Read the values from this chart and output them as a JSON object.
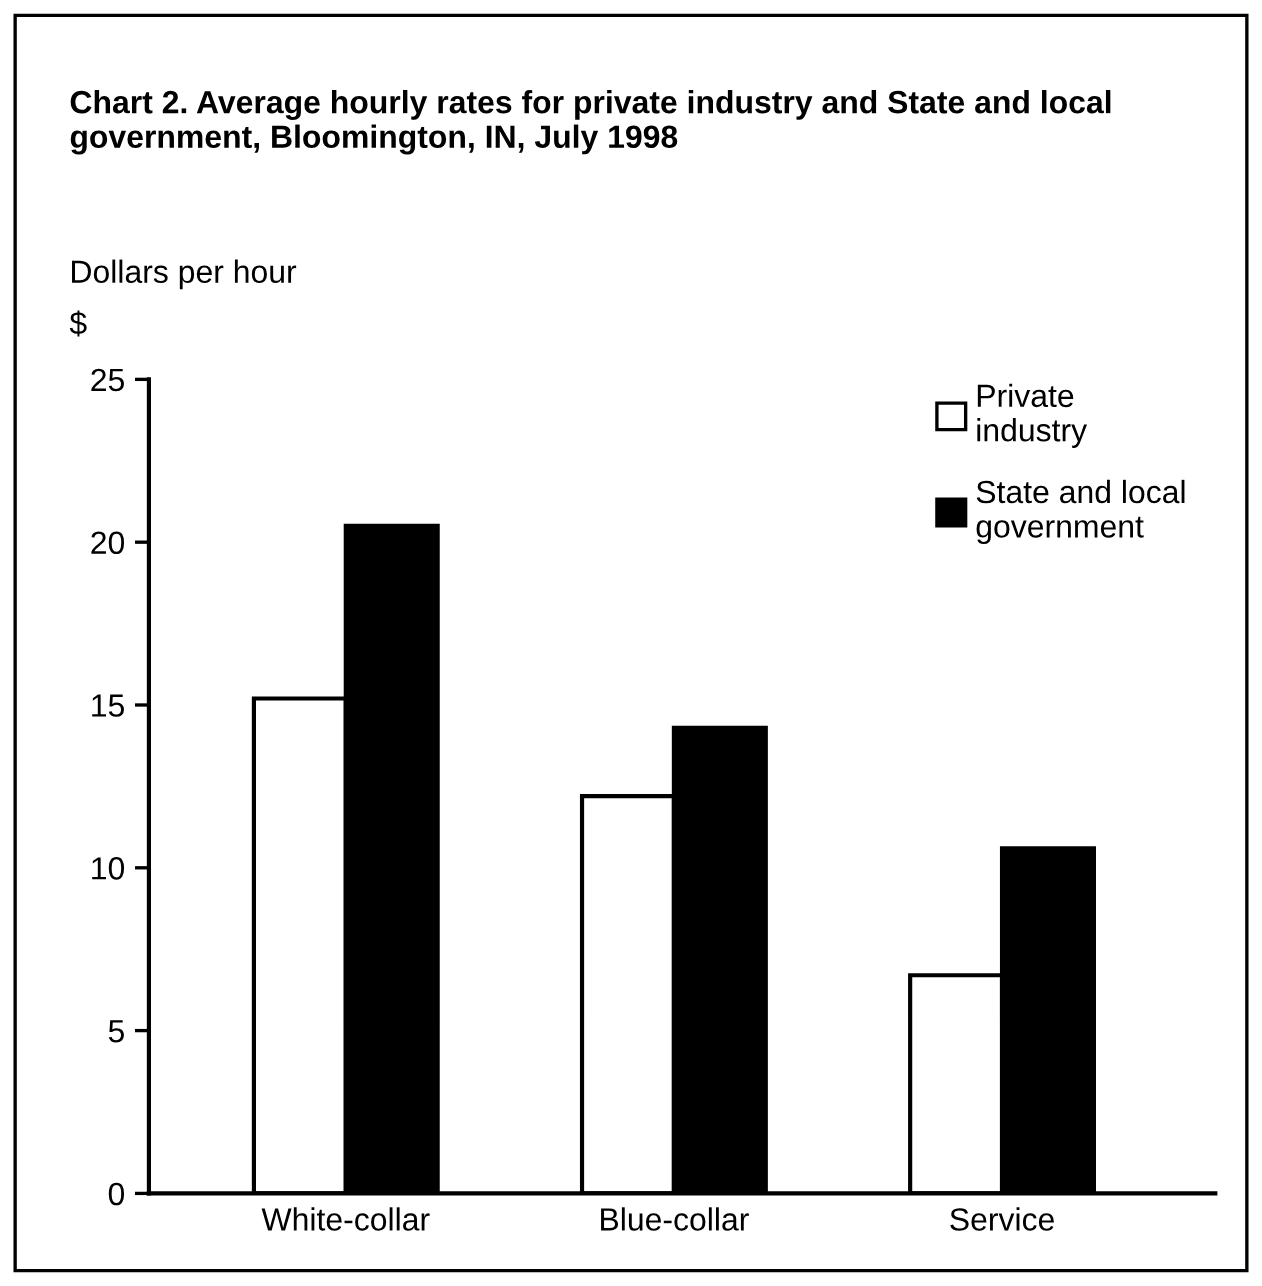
{
  "chart_data": {
    "type": "bar",
    "title": "Chart 2. Average hourly rates for private industry and State and local government, Bloomington, IN, July 1998",
    "ylabel": "Dollars per hour",
    "annotations": [
      "$"
    ],
    "categories": [
      "White-collar",
      "Blue-collar",
      "Service"
    ],
    "series": [
      {
        "name": "Private\nindustry",
        "color": "#ffffff",
        "values": [
          15.2,
          12.2,
          6.7
        ]
      },
      {
        "name": "State and local\ngovernment",
        "color": "#000000",
        "values": [
          20.5,
          14.3,
          10.6
        ]
      }
    ],
    "ylim": [
      0,
      25
    ],
    "yticks": [
      0,
      5,
      10,
      15,
      20,
      25
    ],
    "grid": false,
    "legend": "top right"
  }
}
